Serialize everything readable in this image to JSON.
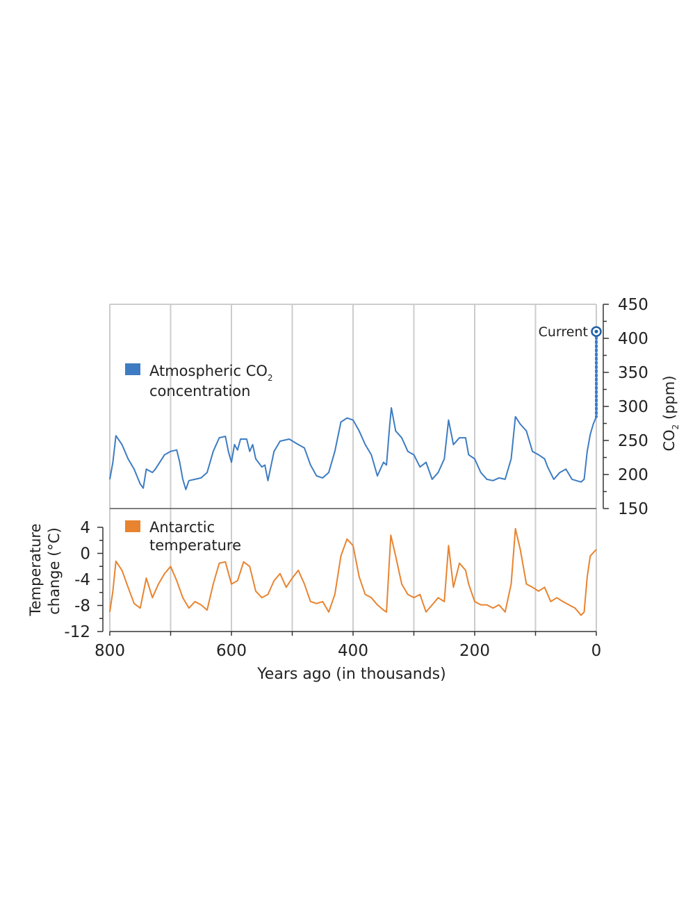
{
  "chart_data": [
    {
      "type": "line",
      "panel": "top",
      "legend": {
        "label_main": "Atmospheric CO",
        "label_sub": "2",
        "label_line2": "concentration",
        "placement": "upper-left"
      },
      "ylabel": {
        "main": "CO",
        "sub": "2",
        "rest": " (ppm)"
      },
      "ylim": [
        150,
        450
      ],
      "yticks": [
        450,
        400,
        350,
        300,
        250,
        200,
        150
      ],
      "axis_side": "right",
      "color": "#3d7cc2",
      "x": [
        800,
        795,
        790,
        780,
        770,
        760,
        750,
        745,
        740,
        730,
        725,
        720,
        710,
        700,
        690,
        685,
        680,
        675,
        670,
        660,
        650,
        640,
        630,
        620,
        610,
        605,
        600,
        595,
        590,
        585,
        575,
        570,
        565,
        560,
        550,
        545,
        540,
        530,
        520,
        505,
        490,
        480,
        470,
        460,
        450,
        440,
        430,
        420,
        410,
        400,
        390,
        380,
        370,
        360,
        350,
        345,
        340,
        337,
        330,
        320,
        310,
        300,
        290,
        280,
        270,
        260,
        250,
        243,
        235,
        225,
        215,
        210,
        200,
        190,
        180,
        170,
        160,
        150,
        140,
        133,
        125,
        115,
        105,
        95,
        85,
        80,
        70,
        60,
        50,
        40,
        25,
        20,
        15,
        10,
        5,
        0
      ],
      "values": [
        193,
        218,
        257,
        244,
        223,
        208,
        186,
        180,
        208,
        203,
        208,
        215,
        229,
        234,
        236,
        218,
        193,
        178,
        191,
        193,
        195,
        203,
        234,
        254,
        256,
        234,
        218,
        244,
        236,
        252,
        252,
        234,
        244,
        223,
        211,
        214,
        191,
        234,
        249,
        252,
        244,
        239,
        214,
        198,
        195,
        203,
        234,
        277,
        283,
        280,
        264,
        244,
        229,
        198,
        218,
        214,
        270,
        298,
        264,
        254,
        234,
        229,
        211,
        218,
        193,
        203,
        223,
        280,
        244,
        254,
        254,
        229,
        223,
        203,
        193,
        191,
        195,
        193,
        223,
        285,
        274,
        264,
        234,
        229,
        223,
        211,
        193,
        203,
        208,
        193,
        189,
        193,
        234,
        259,
        274,
        285
      ],
      "annotation": {
        "label": "Current",
        "value": 410,
        "x": 0
      }
    },
    {
      "type": "line",
      "panel": "bottom",
      "legend": {
        "label_line1": "Antarctic",
        "label_line2": "temperature",
        "placement": "upper-left"
      },
      "ylabel": {
        "line1": "Temperature",
        "line2": "change (°C)"
      },
      "ylim": [
        -12,
        4
      ],
      "yticks": [
        4,
        0,
        -4,
        -8,
        -12
      ],
      "axis_side": "left",
      "color": "#e8832f",
      "x": [
        800,
        795,
        790,
        780,
        770,
        760,
        750,
        740,
        730,
        720,
        710,
        700,
        690,
        680,
        670,
        660,
        650,
        640,
        630,
        620,
        610,
        600,
        590,
        580,
        570,
        560,
        550,
        540,
        530,
        520,
        510,
        500,
        490,
        480,
        470,
        460,
        450,
        440,
        430,
        420,
        410,
        400,
        390,
        380,
        370,
        360,
        350,
        345,
        338,
        330,
        320,
        310,
        300,
        290,
        280,
        270,
        260,
        250,
        243,
        235,
        225,
        215,
        210,
        200,
        190,
        180,
        170,
        160,
        150,
        140,
        133,
        125,
        115,
        105,
        95,
        85,
        75,
        65,
        55,
        45,
        35,
        25,
        20,
        15,
        10,
        5,
        0
      ],
      "values": [
        -9,
        -5.8,
        -1.2,
        -2.6,
        -5.2,
        -7.7,
        -8.4,
        -3.8,
        -6.8,
        -4.7,
        -3.1,
        -2,
        -4.2,
        -6.8,
        -8.4,
        -7.4,
        -7.9,
        -8.7,
        -4.7,
        -1.5,
        -1.3,
        -4.7,
        -4.2,
        -1.3,
        -2,
        -5.8,
        -6.8,
        -6.3,
        -4.2,
        -3.1,
        -5.2,
        -3.8,
        -2.6,
        -4.7,
        -7.4,
        -7.7,
        -7.4,
        -9,
        -6.3,
        -0.4,
        2.2,
        1.2,
        -3.6,
        -6.3,
        -6.8,
        -7.9,
        -8.7,
        -9,
        2.8,
        -0.4,
        -4.7,
        -6.3,
        -6.8,
        -6.3,
        -9,
        -7.9,
        -6.8,
        -7.4,
        1.2,
        -5.2,
        -1.5,
        -2.6,
        -4.7,
        -7.4,
        -7.9,
        -7.9,
        -8.4,
        -7.9,
        -9,
        -4.7,
        3.8,
        0.6,
        -4.7,
        -5.2,
        -5.8,
        -5.2,
        -7.4,
        -6.8,
        -7.4,
        -7.9,
        -8.4,
        -9.5,
        -9,
        -3.6,
        -0.4,
        0.1,
        0.6
      ]
    }
  ],
  "xaxis": {
    "label": "Years ago (in thousands)",
    "xlim": [
      800,
      0
    ],
    "ticklabels": [
      "800",
      "600",
      "400",
      "200",
      "0"
    ],
    "ticks": [
      800,
      700,
      600,
      500,
      400,
      300,
      200,
      100,
      0
    ],
    "grid": "vertical"
  },
  "colors": {
    "grid": "#cccccc",
    "axis": "#333333"
  }
}
